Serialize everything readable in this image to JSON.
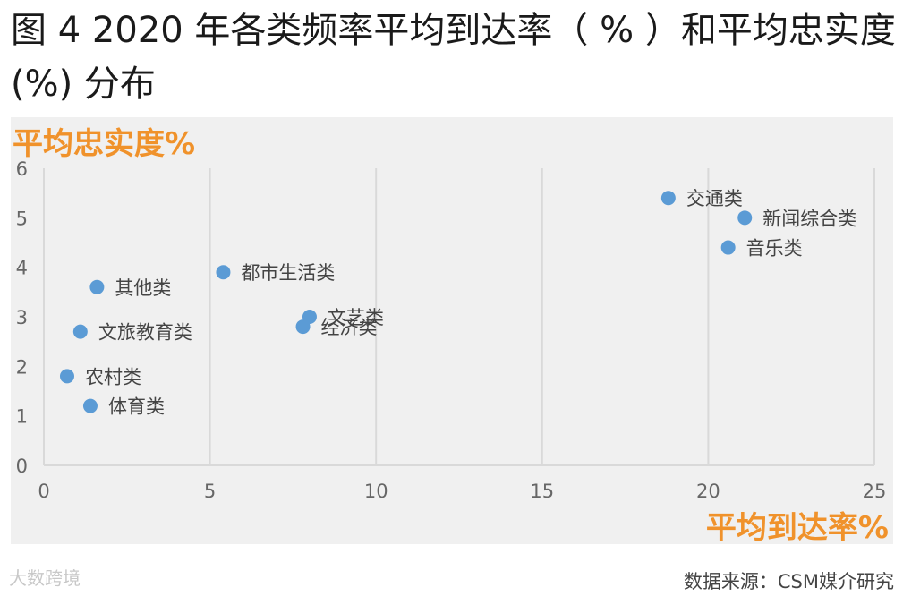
{
  "figure": {
    "title": "图 4   2020 年各类频率平均到达率（ % ）和平均忠实度 (%) 分布",
    "source": "数据来源：CSM媒介研究",
    "watermark": "大数跨境"
  },
  "chart_data": {
    "type": "scatter",
    "xlabel": "平均到达率%",
    "ylabel": "平均忠实度%",
    "xlim": [
      0,
      25
    ],
    "ylim": [
      0,
      6
    ],
    "x_ticks": [
      0,
      5,
      10,
      15,
      20,
      25
    ],
    "y_ticks": [
      0,
      1,
      2,
      3,
      4,
      5,
      6
    ],
    "grid": "vertical",
    "marker_color": "#5b9bd5",
    "label_color": "#f0922b",
    "points": [
      {
        "label": "交通类",
        "x": 18.8,
        "y": 5.4
      },
      {
        "label": "新闻综合类",
        "x": 21.1,
        "y": 5.0
      },
      {
        "label": "音乐类",
        "x": 20.6,
        "y": 4.4
      },
      {
        "label": "都市生活类",
        "x": 5.4,
        "y": 3.9
      },
      {
        "label": "其他类",
        "x": 1.6,
        "y": 3.6
      },
      {
        "label": "文艺类",
        "x": 8.0,
        "y": 3.0
      },
      {
        "label": "经济类",
        "x": 7.8,
        "y": 2.8
      },
      {
        "label": "文旅教育类",
        "x": 1.1,
        "y": 2.7
      },
      {
        "label": "农村类",
        "x": 0.7,
        "y": 1.8
      },
      {
        "label": "体育类",
        "x": 1.4,
        "y": 1.2
      }
    ]
  }
}
